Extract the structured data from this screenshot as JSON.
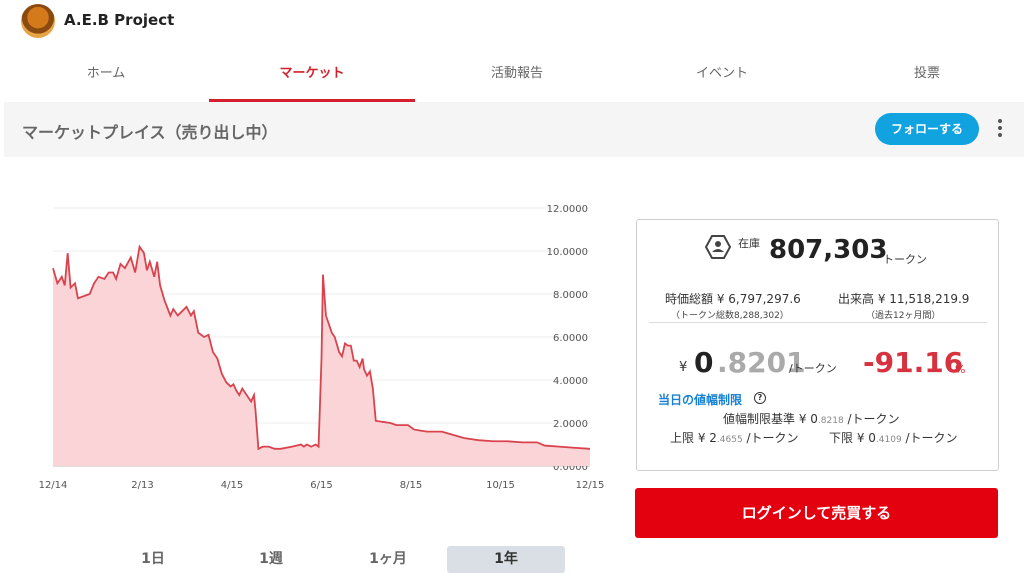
{
  "header": {
    "project_name": "A.E.B Project"
  },
  "nav": {
    "tabs": [
      {
        "label": "ホーム",
        "active": false
      },
      {
        "label": "マーケット",
        "active": true
      },
      {
        "label": "活動報告",
        "active": false
      },
      {
        "label": "イベント",
        "active": false
      },
      {
        "label": "投票",
        "active": false
      }
    ]
  },
  "subheader": {
    "title": "マーケットプレイス（売り出し中）",
    "follow_label": "フォローする"
  },
  "chart_data": {
    "type": "area",
    "x_tick_labels": [
      "12/14",
      "2/13",
      "4/15",
      "6/15",
      "8/15",
      "10/15",
      "12/15"
    ],
    "y_tick_labels": [
      "0.0000",
      "2.0000",
      "4.0000",
      "6.0000",
      "8.0000",
      "10.0000",
      "12.0000"
    ],
    "ylim": [
      0,
      12
    ],
    "xlim": [
      0,
      366
    ],
    "grid": true,
    "color": "#d9434d",
    "fill": "#fad4d6",
    "series": [
      {
        "points": [
          [
            0,
            9.2
          ],
          [
            3,
            8.5
          ],
          [
            6,
            8.8
          ],
          [
            8,
            8.4
          ],
          [
            10,
            9.9
          ],
          [
            12,
            8.3
          ],
          [
            15,
            8.5
          ],
          [
            17,
            7.8
          ],
          [
            21,
            7.9
          ],
          [
            25,
            8.0
          ],
          [
            28,
            8.5
          ],
          [
            31,
            8.8
          ],
          [
            35,
            8.7
          ],
          [
            38,
            9.0
          ],
          [
            41,
            9.0
          ],
          [
            43,
            8.7
          ],
          [
            46,
            9.4
          ],
          [
            49,
            9.2
          ],
          [
            53,
            9.7
          ],
          [
            56,
            9.0
          ],
          [
            59,
            10.2
          ],
          [
            62,
            9.9
          ],
          [
            64,
            9.1
          ],
          [
            66,
            9.5
          ],
          [
            69,
            8.8
          ],
          [
            71,
            9.5
          ],
          [
            73,
            8.4
          ],
          [
            76,
            7.7
          ],
          [
            80,
            7.0
          ],
          [
            82,
            7.3
          ],
          [
            85,
            7.0
          ],
          [
            88,
            7.2
          ],
          [
            91,
            7.4
          ],
          [
            94,
            7.0
          ],
          [
            96,
            7.2
          ],
          [
            99,
            6.2
          ],
          [
            103,
            6.0
          ],
          [
            106,
            6.1
          ],
          [
            109,
            5.3
          ],
          [
            112,
            5.0
          ],
          [
            115,
            4.3
          ],
          [
            118,
            3.9
          ],
          [
            121,
            3.7
          ],
          [
            123,
            3.8
          ],
          [
            125,
            3.5
          ],
          [
            127,
            3.3
          ],
          [
            129,
            3.6
          ],
          [
            131,
            3.4
          ],
          [
            133,
            3.2
          ],
          [
            135,
            3.0
          ],
          [
            137,
            3.3
          ],
          [
            138,
            2.6
          ],
          [
            140,
            0.8
          ],
          [
            143,
            0.9
          ],
          [
            147,
            0.9
          ],
          [
            151,
            0.8
          ],
          [
            155,
            0.8
          ],
          [
            159,
            0.85
          ],
          [
            163,
            0.9
          ],
          [
            166,
            0.95
          ],
          [
            169,
            1.0
          ],
          [
            171,
            0.9
          ],
          [
            173,
            1.0
          ],
          [
            176,
            0.9
          ],
          [
            179,
            1.0
          ],
          [
            181,
            0.9
          ],
          [
            183,
            5.0
          ],
          [
            184,
            8.9
          ],
          [
            186,
            7.0
          ],
          [
            188,
            6.6
          ],
          [
            190,
            6.2
          ],
          [
            192,
            6.0
          ],
          [
            195,
            5.3
          ],
          [
            197,
            5.1
          ],
          [
            199,
            5.7
          ],
          [
            201,
            5.6
          ],
          [
            203,
            5.6
          ],
          [
            205,
            4.9
          ],
          [
            207,
            4.9
          ],
          [
            209,
            4.6
          ],
          [
            211,
            5.0
          ],
          [
            212,
            4.5
          ],
          [
            214,
            4.2
          ],
          [
            216,
            4.4
          ],
          [
            218,
            3.6
          ],
          [
            220,
            2.1
          ],
          [
            225,
            2.05
          ],
          [
            230,
            2.0
          ],
          [
            234,
            1.9
          ],
          [
            238,
            1.9
          ],
          [
            242,
            1.9
          ],
          [
            246,
            1.7
          ],
          [
            250,
            1.65
          ],
          [
            255,
            1.6
          ],
          [
            260,
            1.6
          ],
          [
            265,
            1.6
          ],
          [
            270,
            1.5
          ],
          [
            275,
            1.4
          ],
          [
            280,
            1.3
          ],
          [
            285,
            1.25
          ],
          [
            290,
            1.2
          ],
          [
            300,
            1.15
          ],
          [
            310,
            1.15
          ],
          [
            320,
            1.1
          ],
          [
            330,
            1.1
          ],
          [
            335,
            0.95
          ],
          [
            345,
            0.9
          ],
          [
            355,
            0.85
          ],
          [
            366,
            0.8
          ]
        ]
      }
    ]
  },
  "periods": [
    {
      "label": "1日",
      "active": false
    },
    {
      "label": "1週",
      "active": false
    },
    {
      "label": "1ヶ月",
      "active": false
    },
    {
      "label": "1年",
      "active": true
    }
  ],
  "panel": {
    "stock_label": "在庫",
    "stock_value": "807,303",
    "stock_unit": "トークン",
    "market_cap": "時価総額 ¥ 6,797,297.6",
    "market_cap_sub": "（トークン総数8,288,302）",
    "volume": "出来高 ¥ 11,518,219.9",
    "volume_sub": "（過去12ヶ月間）",
    "price_yen": "¥",
    "price_int": "0",
    "price_dec": ".8201",
    "price_unit": "/トークン",
    "change": "-91.16",
    "change_unit": "%",
    "limit_title": "当日の値幅制限",
    "base_label": "値幅制限基準 ¥ 0",
    "base_dec": ".8218",
    "base_unit": "/トークン",
    "upper_label": "上限 ¥ 2",
    "upper_dec": ".4655",
    "upper_unit": "/トークン",
    "lower_label": "下限 ¥ 0",
    "lower_dec": ".4109",
    "lower_unit": "/トークン"
  },
  "login_label": "ログインして売買する"
}
